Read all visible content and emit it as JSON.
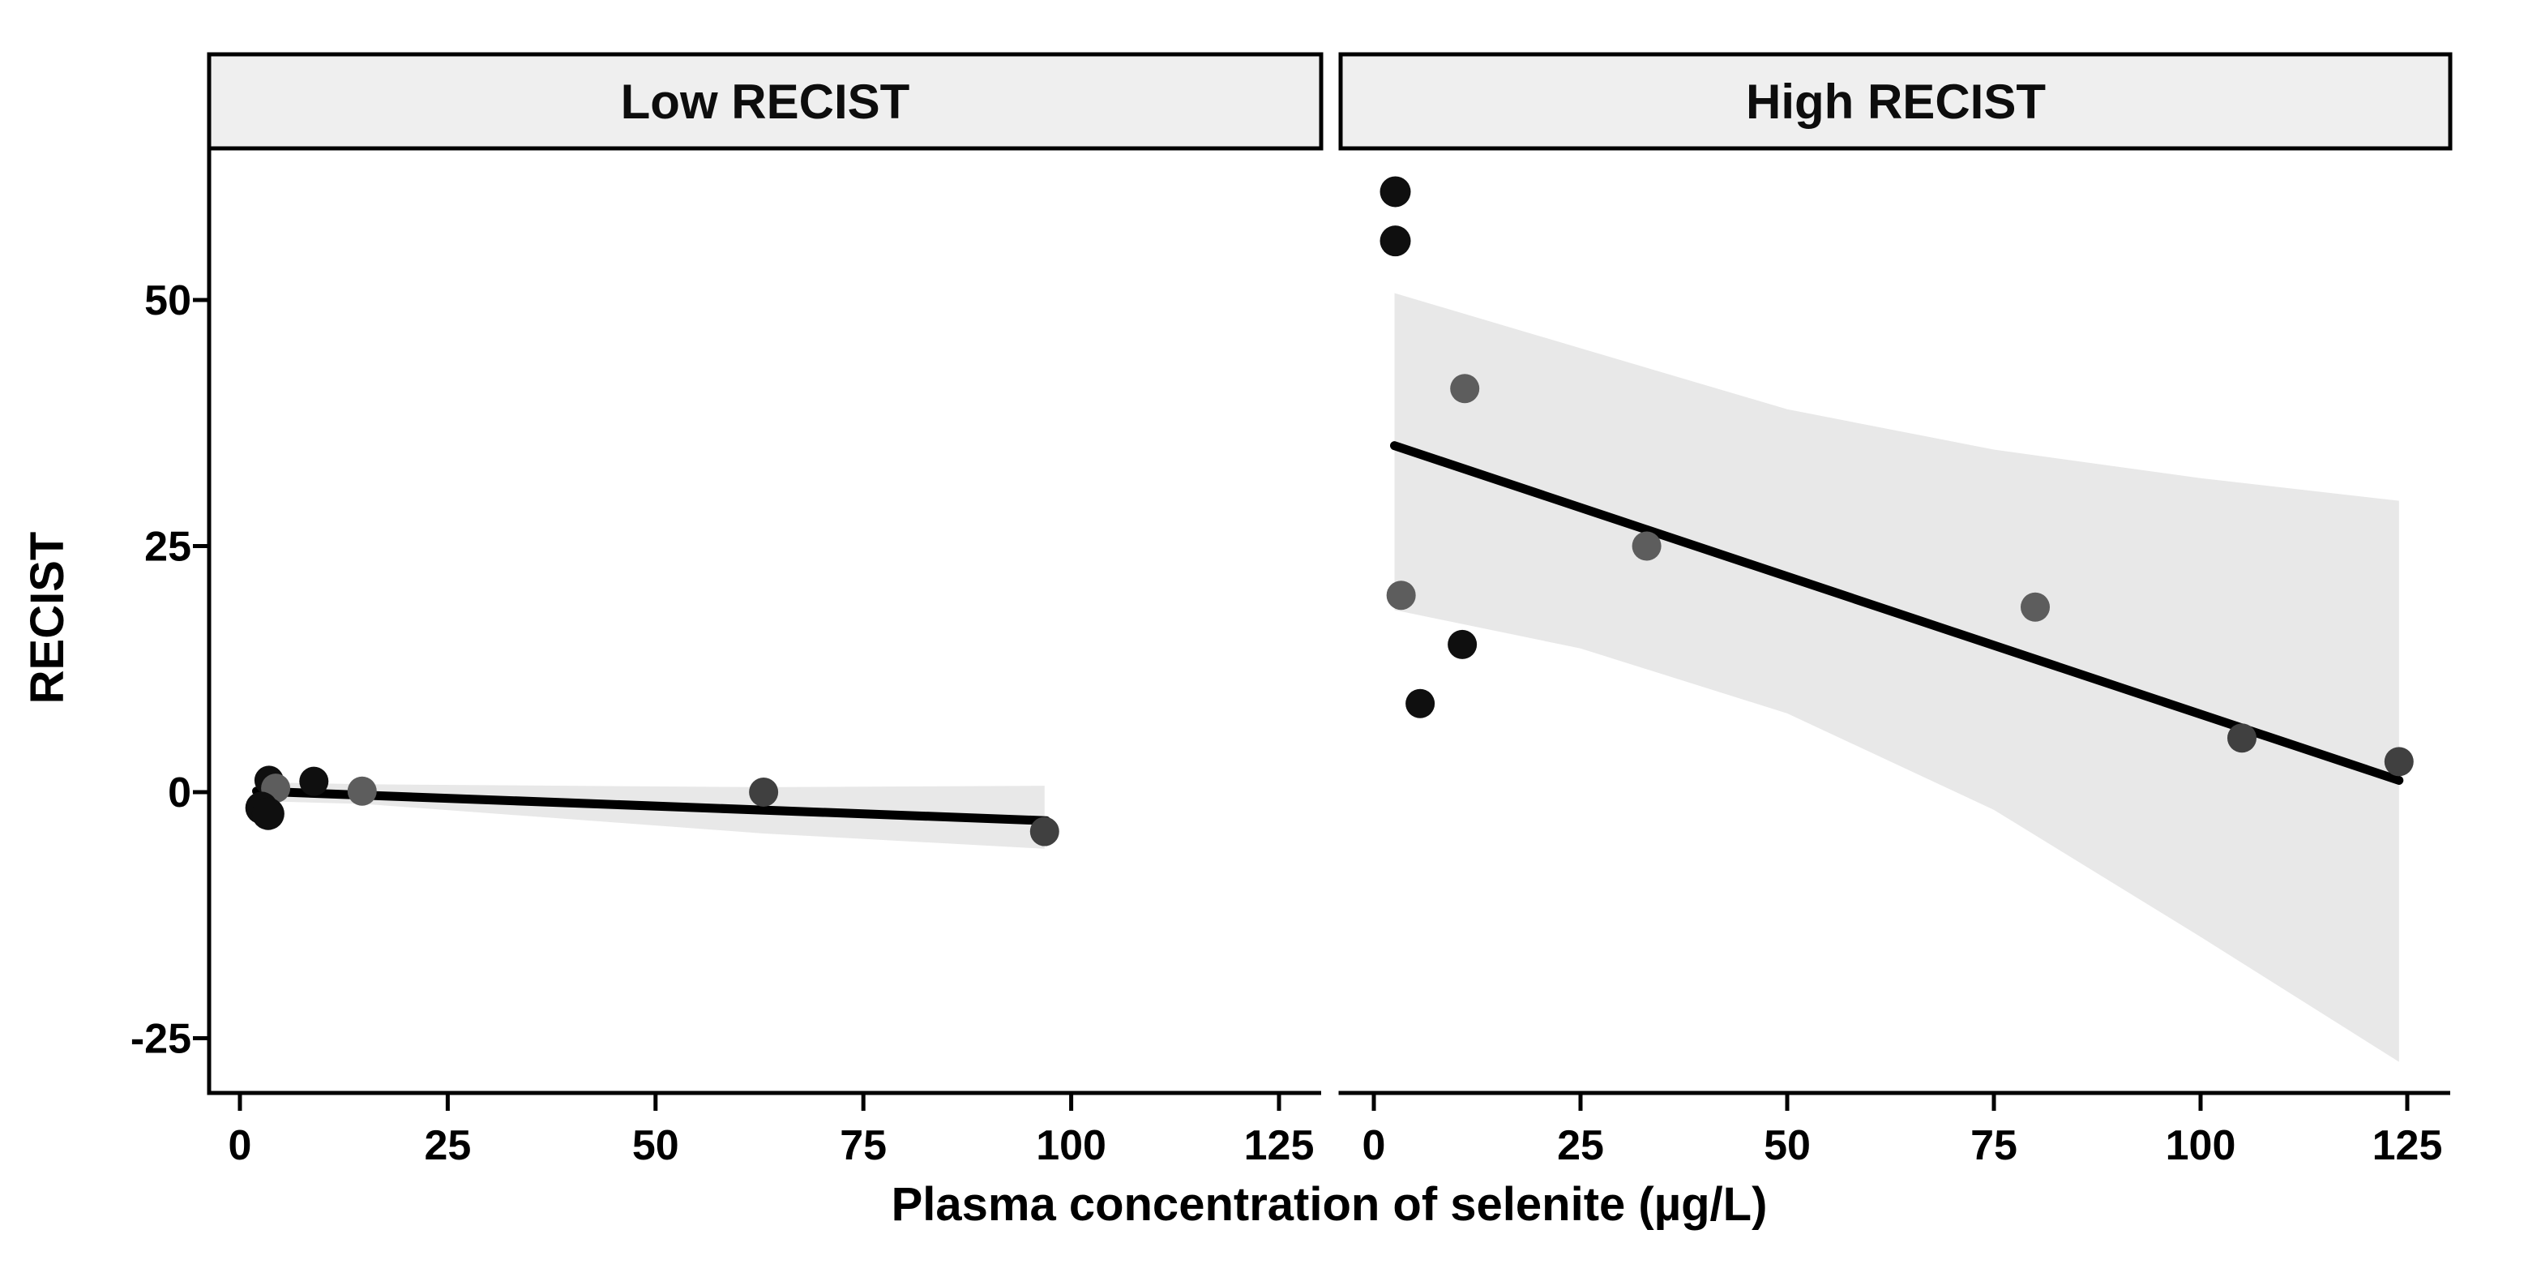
{
  "colors": {
    "background": "#ffffff",
    "header_fill": "#efefef",
    "border": "#000000",
    "ribbon": "#e8e8e8",
    "line": "#000000",
    "point_black": "#0f0f0f",
    "point_gray": "#5d5d5d",
    "point_darkgray": "#404040"
  },
  "chart_data": {
    "type": "scatter",
    "title": "",
    "xlabel": "Plasma concentration of selenite (µg/L)",
    "ylabel": "RECIST",
    "x_ticks": [
      0,
      25,
      50,
      75,
      100,
      125
    ],
    "y_ticks": [
      50,
      25,
      0,
      -25
    ],
    "xlim": [
      -4,
      130
    ],
    "ylim": [
      -30,
      65
    ],
    "grid": "off",
    "legend": "none",
    "facets": [
      {
        "label": "Low RECIST",
        "points": [
          {
            "x": 3.5,
            "y": 1.2,
            "shade": "black"
          },
          {
            "x": 4.3,
            "y": 0.4,
            "shade": "gray"
          },
          {
            "x": 8.9,
            "y": 1.1,
            "shade": "black"
          },
          {
            "x": 14.7,
            "y": 0.1,
            "shade": "gray"
          },
          {
            "x": 2.6,
            "y": -1.6,
            "shade": "black",
            "r": 20
          },
          {
            "x": 3.4,
            "y": -2.2,
            "shade": "black",
            "r": 20
          },
          {
            "x": 63,
            "y": 0.0,
            "shade": "darkgray"
          },
          {
            "x": 96.8,
            "y": -4.0,
            "shade": "darkgray"
          }
        ],
        "regression": {
          "x1": 2,
          "y1": 0.1,
          "x2": 97,
          "y2": -2.9
        },
        "ci": {
          "upper": [
            [
              2,
              1.0
            ],
            [
              15,
              0.8
            ],
            [
              63,
              0.5
            ],
            [
              96.8,
              0.65
            ]
          ],
          "lower": [
            [
              2,
              -0.9
            ],
            [
              15,
              -1.2
            ],
            [
              63,
              -4.2
            ],
            [
              96.8,
              -5.75
            ]
          ]
        }
      },
      {
        "label": "High RECIST",
        "points": [
          {
            "x": 2.6,
            "y": 61,
            "shade": "black",
            "r": 19
          },
          {
            "x": 2.6,
            "y": 56,
            "shade": "black",
            "r": 19
          },
          {
            "x": 11,
            "y": 41,
            "shade": "gray"
          },
          {
            "x": 3.3,
            "y": 20,
            "shade": "gray"
          },
          {
            "x": 10.7,
            "y": 15,
            "shade": "black"
          },
          {
            "x": 5.6,
            "y": 9,
            "shade": "black"
          },
          {
            "x": 33,
            "y": 25,
            "shade": "gray"
          },
          {
            "x": 80,
            "y": 18.8,
            "shade": "gray"
          },
          {
            "x": 105,
            "y": 5.5,
            "shade": "darkgray"
          },
          {
            "x": 124,
            "y": 3.1,
            "shade": "darkgray"
          }
        ],
        "regression": {
          "x1": 2.5,
          "y1": 35.2,
          "x2": 124,
          "y2": 1.2
        },
        "ci": {
          "upper": [
            [
              2.5,
              50.7
            ],
            [
              25,
              45.1
            ],
            [
              50,
              38.9
            ],
            [
              75,
              34.8
            ],
            [
              100,
              31.9
            ],
            [
              124,
              29.6
            ]
          ],
          "lower": [
            [
              2.5,
              18.5
            ],
            [
              25,
              14.6
            ],
            [
              50,
              8.0
            ],
            [
              75,
              -1.8
            ],
            [
              100,
              -14.7
            ],
            [
              124,
              -27.4
            ]
          ]
        }
      }
    ]
  }
}
